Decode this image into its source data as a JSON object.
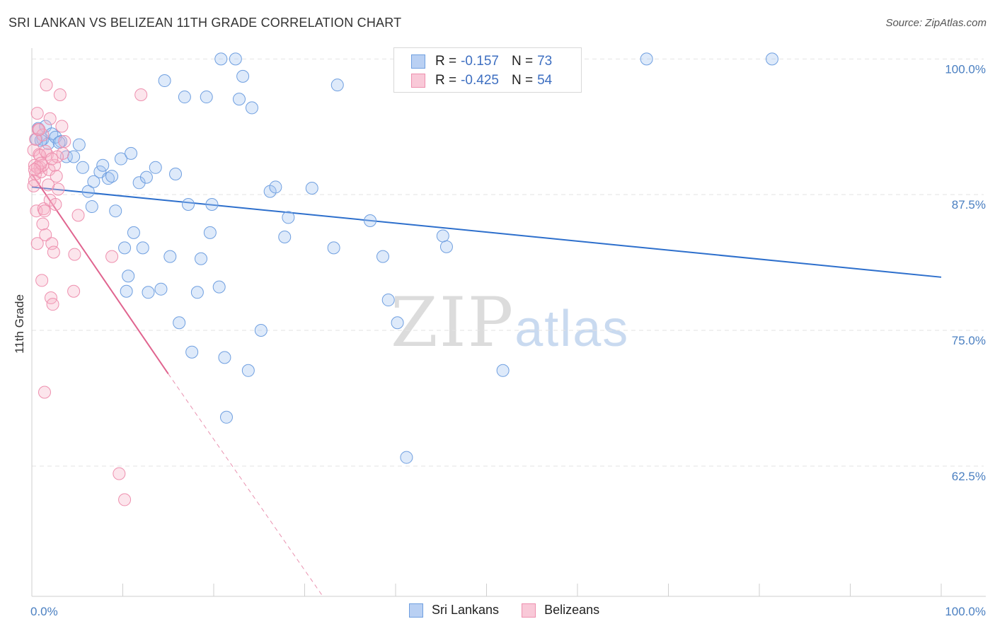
{
  "title": "SRI LANKAN VS BELIZEAN 11TH GRADE CORRELATION CHART",
  "source": "Source: ZipAtlas.com",
  "watermark": {
    "zip": "ZIP",
    "atlas": "atlas"
  },
  "colors": {
    "blue_point": "#6f9fe0",
    "blue_fill": "rgba(160,195,240,0.35)",
    "blue_line": "#2d6fcc",
    "pink_point": "#ee8fae",
    "pink_fill": "rgba(246,180,200,0.35)",
    "pink_line": "#e0648f",
    "axis_text": "#4a7fc1",
    "grid": "#e3e3e3"
  },
  "legend": {
    "rows": [
      {
        "r_label": "R =",
        "r_value": "-0.157",
        "n_label": "N =",
        "n_value": "73"
      },
      {
        "r_label": "R =",
        "r_value": "-0.425",
        "n_label": "N =",
        "n_value": "54"
      }
    ]
  },
  "bottom_legend": {
    "series1": "Sri Lankans",
    "series2": "Belizeans"
  },
  "chart_data": {
    "type": "scatter",
    "title": "SRI LANKAN VS BELIZEAN 11TH GRADE CORRELATION CHART",
    "xlabel": "",
    "ylabel": "11th Grade",
    "xlim": [
      0,
      100
    ],
    "ylim": [
      50.5,
      101
    ],
    "x_tick_labels": [
      "0.0%",
      "100.0%"
    ],
    "y_ticks": [
      62.5,
      75.0,
      87.5,
      100.0
    ],
    "y_tick_labels": [
      "62.5%",
      "75.0%",
      "87.5%",
      "100.0%"
    ],
    "grid": true,
    "series": [
      {
        "name": "Sri Lankans",
        "r": -0.157,
        "n": 73,
        "trend": {
          "x0": 0,
          "y0": 88.2,
          "x1": 100,
          "y1": 79.9
        },
        "points": [
          [
            0.5,
            92.6
          ],
          [
            0.7,
            93.6
          ],
          [
            1.2,
            92.6
          ],
          [
            1.5,
            93.8
          ],
          [
            1.8,
            92.2
          ],
          [
            2.2,
            93.1
          ],
          [
            2.6,
            92.8
          ],
          [
            3.2,
            92.4
          ],
          [
            3.8,
            91.0
          ],
          [
            4.6,
            91.0
          ],
          [
            5.2,
            92.1
          ],
          [
            5.6,
            90.0
          ],
          [
            6.2,
            87.8
          ],
          [
            6.6,
            86.4
          ],
          [
            6.8,
            88.7
          ],
          [
            7.5,
            89.6
          ],
          [
            7.8,
            90.2
          ],
          [
            8.4,
            89.0
          ],
          [
            8.8,
            89.2
          ],
          [
            9.2,
            86.0
          ],
          [
            9.8,
            90.8
          ],
          [
            10.2,
            82.6
          ],
          [
            10.6,
            80.0
          ],
          [
            10.4,
            78.6
          ],
          [
            10.9,
            91.3
          ],
          [
            11.2,
            84.0
          ],
          [
            11.8,
            88.6
          ],
          [
            12.2,
            82.6
          ],
          [
            12.6,
            89.1
          ],
          [
            12.8,
            78.5
          ],
          [
            13.6,
            90.0
          ],
          [
            14.2,
            78.8
          ],
          [
            14.6,
            98.0
          ],
          [
            15.2,
            81.8
          ],
          [
            15.8,
            89.4
          ],
          [
            16.2,
            75.7
          ],
          [
            16.8,
            96.5
          ],
          [
            17.2,
            86.6
          ],
          [
            17.6,
            73.0
          ],
          [
            18.2,
            78.5
          ],
          [
            18.6,
            81.6
          ],
          [
            19.2,
            96.5
          ],
          [
            19.6,
            84.0
          ],
          [
            19.8,
            86.6
          ],
          [
            20.8,
            100.0
          ],
          [
            20.6,
            79.0
          ],
          [
            21.2,
            72.5
          ],
          [
            21.4,
            67.0
          ],
          [
            22.4,
            100.0
          ],
          [
            22.8,
            96.3
          ],
          [
            23.2,
            98.4
          ],
          [
            23.8,
            71.3
          ],
          [
            24.2,
            95.5
          ],
          [
            25.2,
            75.0
          ],
          [
            26.2,
            87.8
          ],
          [
            26.8,
            88.2
          ],
          [
            27.8,
            83.6
          ],
          [
            28.2,
            85.4
          ],
          [
            30.8,
            88.1
          ],
          [
            33.2,
            82.6
          ],
          [
            33.6,
            97.6
          ],
          [
            37.2,
            85.1
          ],
          [
            38.6,
            81.8
          ],
          [
            39.2,
            77.8
          ],
          [
            40.2,
            75.7
          ],
          [
            41.2,
            63.3
          ],
          [
            45.2,
            83.7
          ],
          [
            45.6,
            82.7
          ],
          [
            51.8,
            71.3
          ],
          [
            67.6,
            100.0
          ],
          [
            81.4,
            100.0
          ],
          [
            3.0,
            92.3
          ],
          [
            1.0,
            92.5
          ]
        ]
      },
      {
        "name": "Belizeans",
        "r": -0.425,
        "n": 54,
        "trend": {
          "x0": 0,
          "y0": 89.4,
          "x1": 15.0,
          "y1": 71.0
        },
        "trend_extension": {
          "x0": 15.0,
          "y0": 71.0,
          "x1": 32.0,
          "y1": 50.5
        },
        "points": [
          [
            0.2,
            91.6
          ],
          [
            0.3,
            90.2
          ],
          [
            0.4,
            89.4
          ],
          [
            0.3,
            88.8
          ],
          [
            0.5,
            86.0
          ],
          [
            0.6,
            83.0
          ],
          [
            0.6,
            95.0
          ],
          [
            0.7,
            93.5
          ],
          [
            0.8,
            91.2
          ],
          [
            0.9,
            90.0
          ],
          [
            1.0,
            89.6
          ],
          [
            1.1,
            79.6
          ],
          [
            1.2,
            84.8
          ],
          [
            1.3,
            86.2
          ],
          [
            1.4,
            86.0
          ],
          [
            1.5,
            83.8
          ],
          [
            1.6,
            97.6
          ],
          [
            1.2,
            93.0
          ],
          [
            1.7,
            91.2
          ],
          [
            1.9,
            89.8
          ],
          [
            2.0,
            87.0
          ],
          [
            2.1,
            78.0
          ],
          [
            2.2,
            83.0
          ],
          [
            2.3,
            77.4
          ],
          [
            2.0,
            94.5
          ],
          [
            2.4,
            82.2
          ],
          [
            2.5,
            90.2
          ],
          [
            2.6,
            86.6
          ],
          [
            2.7,
            89.2
          ],
          [
            2.9,
            88.0
          ],
          [
            3.1,
            96.7
          ],
          [
            3.3,
            93.8
          ],
          [
            3.4,
            91.3
          ],
          [
            3.6,
            92.4
          ],
          [
            1.4,
            69.3
          ],
          [
            4.6,
            78.6
          ],
          [
            4.7,
            82.0
          ],
          [
            5.1,
            85.6
          ],
          [
            8.8,
            81.8
          ],
          [
            9.6,
            61.8
          ],
          [
            10.2,
            59.4
          ],
          [
            12.0,
            96.7
          ],
          [
            0.4,
            92.6
          ],
          [
            0.9,
            91.1
          ],
          [
            1.2,
            90.2
          ],
          [
            0.2,
            88.3
          ],
          [
            2.8,
            91.0
          ],
          [
            1.8,
            88.4
          ],
          [
            0.6,
            90.0
          ],
          [
            1.0,
            90.4
          ],
          [
            0.3,
            89.8
          ],
          [
            1.5,
            91.5
          ],
          [
            0.8,
            93.5
          ],
          [
            2.2,
            90.8
          ]
        ]
      }
    ]
  }
}
